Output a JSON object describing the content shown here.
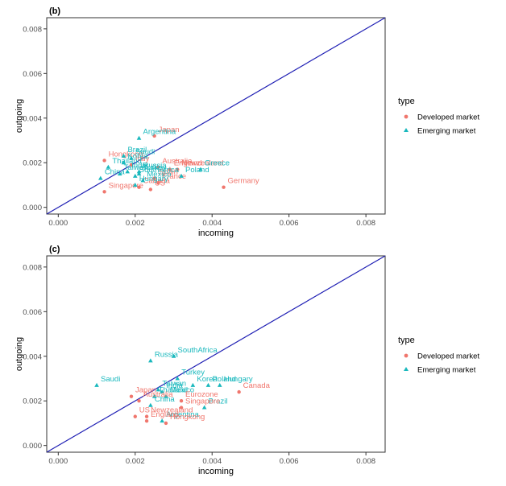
{
  "colors": {
    "developed": "#f0766d",
    "emerging": "#19b8bd",
    "diagonal": "#1f1fb4",
    "axis_text": "#4d4d4d",
    "frame": "#333333"
  },
  "legend": {
    "title": "type",
    "items": [
      "Developed market",
      "Emerging market"
    ]
  },
  "chart_data": [
    {
      "type": "scatter",
      "panel_label": "(b)",
      "xlabel": "incoming",
      "ylabel": "outgoing",
      "xlim": [
        -0.0003,
        0.0085
      ],
      "ylim": [
        -0.0003,
        0.0085
      ],
      "xticks": [
        "0.000",
        "0.002",
        "0.004",
        "0.006",
        "0.008"
      ],
      "yticks": [
        "0.000",
        "0.002",
        "0.004",
        "0.006",
        "0.008"
      ],
      "tick_values": [
        0,
        0.002,
        0.004,
        0.006,
        0.008
      ],
      "reference_line": "y = x",
      "grid": false,
      "legend_position": "right",
      "points": [
        {
          "label": "Japan",
          "type": "Developed market",
          "x": 0.0025,
          "y": 0.0032
        },
        {
          "label": "Australia",
          "type": "Developed market",
          "x": 0.0026,
          "y": 0.0018
        },
        {
          "label": "Newzealand",
          "type": "Developed market",
          "x": 0.0031,
          "y": 0.0017
        },
        {
          "label": "England",
          "type": "Developed market",
          "x": 0.0029,
          "y": 0.0017
        },
        {
          "label": "Hongkong",
          "type": "Developed market",
          "x": 0.0012,
          "y": 0.0021
        },
        {
          "label": "Italy",
          "type": "Developed market",
          "x": 0.0019,
          "y": 0.0019
        },
        {
          "label": "Spain",
          "type": "Developed market",
          "x": 0.0025,
          "y": 0.0013
        },
        {
          "label": "Germany",
          "type": "Developed market",
          "x": 0.0043,
          "y": 0.0009
        },
        {
          "label": "France",
          "type": "Developed market",
          "x": 0.0026,
          "y": 0.0011
        },
        {
          "label": "US",
          "type": "Developed market",
          "x": 0.0024,
          "y": 0.0008
        },
        {
          "label": "Canada",
          "type": "Developed market",
          "x": 0.0021,
          "y": 0.0009
        },
        {
          "label": "Singapore",
          "type": "Developed market",
          "x": 0.0012,
          "y": 0.0007
        },
        {
          "label": "Argentina",
          "type": "Emerging market",
          "x": 0.0021,
          "y": 0.0031
        },
        {
          "label": "Brazil",
          "type": "Emerging market",
          "x": 0.0017,
          "y": 0.0023
        },
        {
          "label": "Saudi",
          "type": "Emerging market",
          "x": 0.0019,
          "y": 0.0022
        },
        {
          "label": "Korea",
          "type": "Emerging market",
          "x": 0.0017,
          "y": 0.002
        },
        {
          "label": "Thailand",
          "type": "Emerging market",
          "x": 0.0013,
          "y": 0.0018
        },
        {
          "label": "India",
          "type": "Emerging market",
          "x": 0.0018,
          "y": 0.0016
        },
        {
          "label": "Taiwan",
          "type": "Emerging market",
          "x": 0.0016,
          "y": 0.0015
        },
        {
          "label": "Russia",
          "type": "Emerging market",
          "x": 0.0021,
          "y": 0.0016
        },
        {
          "label": "Greece",
          "type": "Emerging market",
          "x": 0.0037,
          "y": 0.0017
        },
        {
          "label": "Poland",
          "type": "Emerging market",
          "x": 0.0032,
          "y": 0.0014
        },
        {
          "label": "China",
          "type": "Emerging market",
          "x": 0.0011,
          "y": 0.0013
        },
        {
          "label": "SouthAfrica",
          "type": "Emerging market",
          "x": 0.002,
          "y": 0.0014
        },
        {
          "label": "Turkey",
          "type": "Emerging market",
          "x": 0.0021,
          "y": 0.0015
        },
        {
          "label": "Mexico",
          "type": "Emerging market",
          "x": 0.0022,
          "y": 0.0012
        },
        {
          "label": "Hungary",
          "type": "Emerging market",
          "x": 0.002,
          "y": 0.001
        }
      ]
    },
    {
      "type": "scatter",
      "panel_label": "(c)",
      "xlabel": "incoming",
      "ylabel": "outgoing",
      "xlim": [
        -0.0003,
        0.0085
      ],
      "ylim": [
        -0.0003,
        0.0085
      ],
      "xticks": [
        "0.000",
        "0.002",
        "0.004",
        "0.006",
        "0.008"
      ],
      "yticks": [
        "0.000",
        "0.002",
        "0.004",
        "0.006",
        "0.008"
      ],
      "tick_values": [
        0,
        0.002,
        0.004,
        0.006,
        0.008
      ],
      "reference_line": "y = x",
      "grid": false,
      "legend_position": "right",
      "points": [
        {
          "label": "SouthAfrica",
          "type": "Emerging market",
          "x": 0.003,
          "y": 0.004
        },
        {
          "label": "Russia",
          "type": "Emerging market",
          "x": 0.0024,
          "y": 0.0038
        },
        {
          "label": "Turkey",
          "type": "Emerging market",
          "x": 0.0031,
          "y": 0.003
        },
        {
          "label": "Saudi",
          "type": "Emerging market",
          "x": 0.001,
          "y": 0.0027
        },
        {
          "label": "Korea",
          "type": "Emerging market",
          "x": 0.0035,
          "y": 0.0027
        },
        {
          "label": "Poland",
          "type": "Emerging market",
          "x": 0.0039,
          "y": 0.0027
        },
        {
          "label": "Taiwan",
          "type": "Emerging market",
          "x": 0.0026,
          "y": 0.0025
        },
        {
          "label": "India",
          "type": "Emerging market",
          "x": 0.0027,
          "y": 0.0024
        },
        {
          "label": "Mexico",
          "type": "Emerging market",
          "x": 0.0028,
          "y": 0.0022
        },
        {
          "label": "Thailand",
          "type": "Emerging market",
          "x": 0.0025,
          "y": 0.0022
        },
        {
          "label": "China",
          "type": "Emerging market",
          "x": 0.0024,
          "y": 0.0018
        },
        {
          "label": "Argentina",
          "type": "Emerging market",
          "x": 0.0027,
          "y": 0.0011
        },
        {
          "label": "Brazil",
          "type": "Emerging market",
          "x": 0.0038,
          "y": 0.0017
        },
        {
          "label": "Hungary",
          "type": "Emerging market",
          "x": 0.0042,
          "y": 0.0027
        },
        {
          "label": "Japan",
          "type": "Developed market",
          "x": 0.0019,
          "y": 0.0022
        },
        {
          "label": "Canada",
          "type": "Developed market",
          "x": 0.0047,
          "y": 0.0024
        },
        {
          "label": "Eurozone",
          "type": "Developed market",
          "x": 0.0032,
          "y": 0.002
        },
        {
          "label": "Australia",
          "type": "Developed market",
          "x": 0.0021,
          "y": 0.002
        },
        {
          "label": "Singapore",
          "type": "Developed market",
          "x": 0.0032,
          "y": 0.0017
        },
        {
          "label": "US",
          "type": "Developed market",
          "x": 0.002,
          "y": 0.0013
        },
        {
          "label": "Newzealand",
          "type": "Developed market",
          "x": 0.0023,
          "y": 0.0013
        },
        {
          "label": "England",
          "type": "Developed market",
          "x": 0.0023,
          "y": 0.0011
        },
        {
          "label": "Hongkong",
          "type": "Developed market",
          "x": 0.0028,
          "y": 0.001
        }
      ]
    }
  ]
}
